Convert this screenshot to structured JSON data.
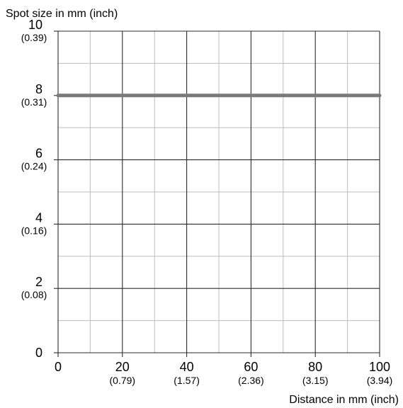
{
  "chart_data": {
    "type": "line",
    "ylabel": "Spot size in mm (inch)",
    "xlabel": "Distance in mm (inch)",
    "xlim": [
      0,
      100
    ],
    "ylim": [
      0,
      10
    ],
    "x_ticks": [
      {
        "value": 0,
        "label": "0",
        "sublabel": ""
      },
      {
        "value": 20,
        "label": "20",
        "sublabel": "(0.79)"
      },
      {
        "value": 40,
        "label": "40",
        "sublabel": "(1.57)"
      },
      {
        "value": 60,
        "label": "60",
        "sublabel": "(2.36)"
      },
      {
        "value": 80,
        "label": "80",
        "sublabel": "(3.15)"
      },
      {
        "value": 100,
        "label": "100",
        "sublabel": "(3.94)"
      }
    ],
    "y_ticks": [
      {
        "value": 0,
        "label": "0",
        "sublabel": ""
      },
      {
        "value": 2,
        "label": "2",
        "sublabel": "(0.08)"
      },
      {
        "value": 4,
        "label": "4",
        "sublabel": "(0.16)"
      },
      {
        "value": 6,
        "label": "6",
        "sublabel": "(0.24)"
      },
      {
        "value": 8,
        "label": "8",
        "sublabel": "(0.31)"
      },
      {
        "value": 10,
        "label": "10",
        "sublabel": "(0.39)"
      }
    ],
    "grid": true,
    "minor_grid": true,
    "series": [
      {
        "x": [
          0,
          100
        ],
        "y": [
          8,
          8
        ],
        "color": "#7a7a7a"
      }
    ]
  }
}
